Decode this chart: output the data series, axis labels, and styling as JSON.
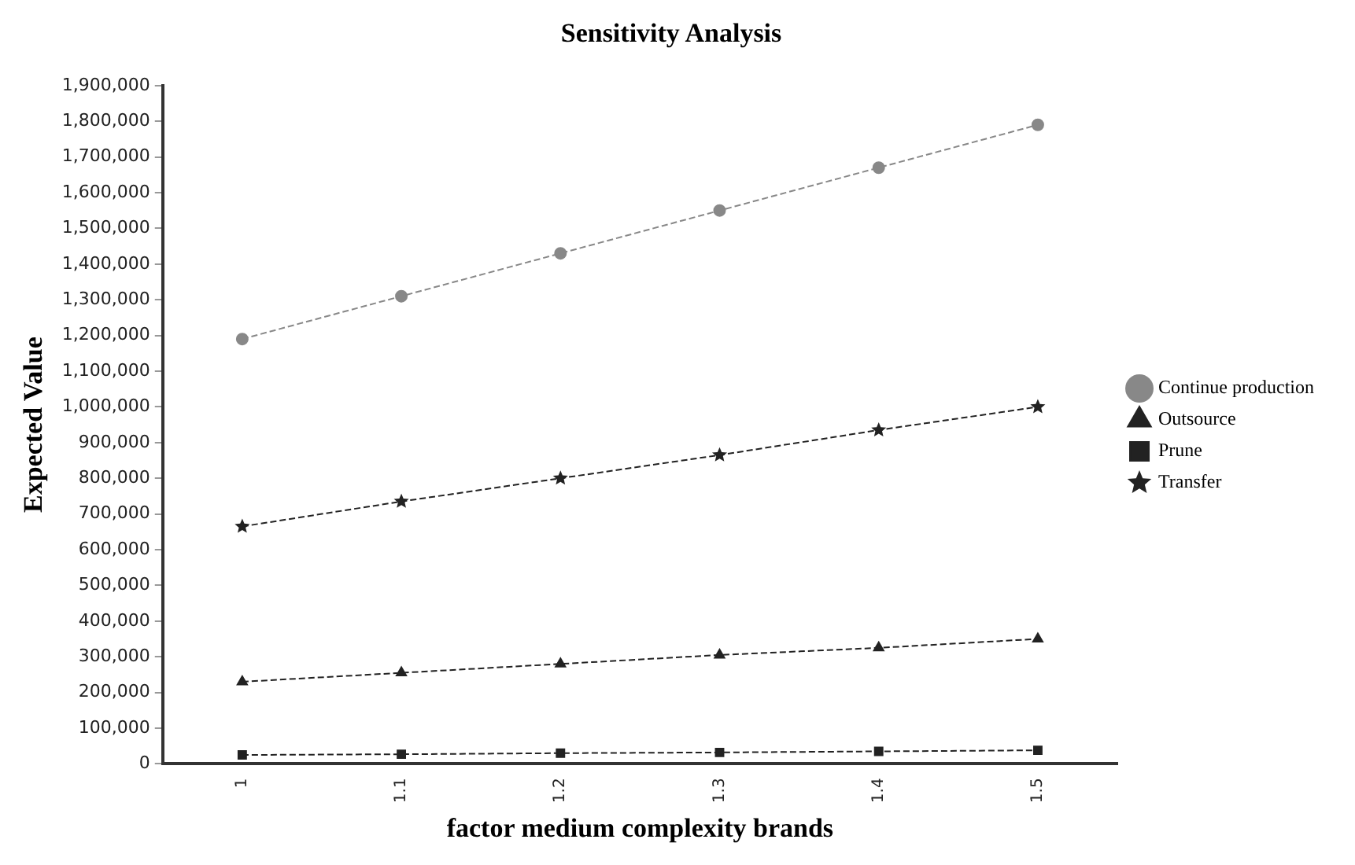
{
  "chart_data": {
    "type": "line",
    "title": "Sensitivity Analysis",
    "xlabel": "factor medium complexity brands",
    "ylabel": "Expected Value",
    "categories": [
      "1",
      "1.1",
      "1.2",
      "1.3",
      "1.4",
      "1.5"
    ],
    "series": [
      {
        "name": "Continue production",
        "color": "#888888",
        "marker": "circle",
        "values": [
          1190000,
          1310000,
          1430000,
          1550000,
          1670000,
          1790000
        ]
      },
      {
        "name": "Outsource",
        "color": "#222222",
        "marker": "triangle",
        "values": [
          230000,
          255000,
          280000,
          305000,
          325000,
          350000
        ]
      },
      {
        "name": "Prune",
        "color": "#222222",
        "marker": "square",
        "values": [
          25000,
          27000,
          30000,
          32000,
          35000,
          38000
        ]
      },
      {
        "name": "Transfer",
        "color": "#222222",
        "marker": "star",
        "values": [
          665000,
          735000,
          800000,
          865000,
          935000,
          1000000
        ]
      }
    ],
    "ylim": [
      0,
      1900000
    ],
    "yticks": [
      {
        "value": 0,
        "label": "0"
      },
      {
        "value": 100000,
        "label": "100,000"
      },
      {
        "value": 200000,
        "label": "200,000"
      },
      {
        "value": 300000,
        "label": "300,000"
      },
      {
        "value": 400000,
        "label": "400,000"
      },
      {
        "value": 500000,
        "label": "500,000"
      },
      {
        "value": 600000,
        "label": "600,000"
      },
      {
        "value": 700000,
        "label": "700,000"
      },
      {
        "value": 800000,
        "label": "800,000"
      },
      {
        "value": 900000,
        "label": "900,000"
      },
      {
        "value": 1000000,
        "label": "1,000,000"
      },
      {
        "value": 1100000,
        "label": "1,100,000"
      },
      {
        "value": 1200000,
        "label": "1,200,000"
      },
      {
        "value": 1300000,
        "label": "1,300,000"
      },
      {
        "value": 1400000,
        "label": "1,400,000"
      },
      {
        "value": 1500000,
        "label": "1,500,000"
      },
      {
        "value": 1600000,
        "label": "1,600,000"
      },
      {
        "value": 1700000,
        "label": "1,700,000"
      },
      {
        "value": 1800000,
        "label": "1,800,000"
      },
      {
        "value": 1900000,
        "label": "1,900,000"
      }
    ],
    "grid": false,
    "legend": "right",
    "line_style": "dashed"
  }
}
